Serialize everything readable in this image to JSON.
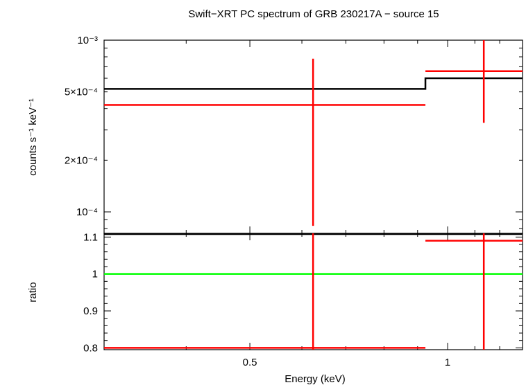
{
  "chart_data": [
    {
      "type": "scatter",
      "panel": "spectrum",
      "title": "Swift−XRT PC spectrum of GRB 230217A − source 15",
      "ylabel": "counts s⁻¹ keV⁻¹",
      "xscale": "log",
      "yscale": "log",
      "xlim": [
        0.3,
        1.3
      ],
      "ylim": [
        7.5e-05,
        0.001
      ],
      "yticks": [
        {
          "value": 0.001,
          "label": "10⁻³"
        },
        {
          "value": 0.0005,
          "label": "5×10⁻⁴"
        },
        {
          "value": 0.0002,
          "label": "2×10⁻⁴"
        },
        {
          "value": 0.0001,
          "label": "10⁻⁴"
        }
      ],
      "data": [
        {
          "x": 0.624,
          "xlo": 0.3,
          "xhi": 0.925,
          "y": 0.00042,
          "ylo": 8.3e-05,
          "yhi": 0.00078
        },
        {
          "x": 1.135,
          "xlo": 0.925,
          "xhi": 1.3,
          "y": 0.00066,
          "ylo": 0.00033,
          "yhi": 0.001
        }
      ],
      "model": [
        {
          "xlo": 0.3,
          "xhi": 0.925,
          "y": 0.00052
        },
        {
          "xlo": 0.925,
          "xhi": 1.3,
          "y": 0.0006
        }
      ],
      "colors": {
        "data": "#ff0000",
        "model": "#000000"
      }
    },
    {
      "type": "scatter",
      "panel": "ratio",
      "xlabel": "Energy (keV)",
      "ylabel": "ratio",
      "xscale": "log",
      "xlim": [
        0.3,
        1.3
      ],
      "ylim": [
        0.795,
        1.11
      ],
      "xticks": [
        {
          "value": 0.5,
          "label": "0.5"
        },
        {
          "value": 1,
          "label": "1"
        }
      ],
      "yticks": [
        {
          "value": 1.1,
          "label": "1.1"
        },
        {
          "value": 1,
          "label": "1"
        },
        {
          "value": 0.9,
          "label": "0.9"
        },
        {
          "value": 0.8,
          "label": "0.8"
        }
      ],
      "data": [
        {
          "x": 0.624,
          "xlo": 0.3,
          "xhi": 0.925,
          "y": 0.8,
          "ylo": 0.795,
          "yhi": 1.11
        },
        {
          "x": 1.135,
          "xlo": 0.925,
          "xhi": 1.3,
          "y": 1.09,
          "ylo": 0.795,
          "yhi": 1.11
        }
      ],
      "reference_line": 1,
      "colors": {
        "data": "#ff0000",
        "reference": "#00ff00"
      }
    }
  ]
}
